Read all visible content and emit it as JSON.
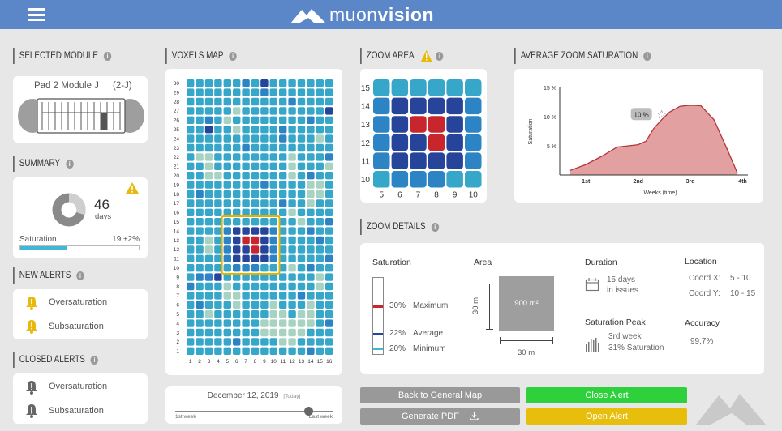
{
  "header": {
    "logo_light": "muon",
    "logo_bold": "vision"
  },
  "sections": {
    "selected_module": "SELECTED MODULE",
    "summary": "SUMMARY",
    "new_alerts": "NEW ALERTS",
    "closed_alerts": "CLOSED ALERTS",
    "voxels_map": "VOXELS MAP",
    "zoom_area": "ZOOM AREA",
    "avg_zoom_saturation": "AVERAGE ZOOM SATURATION",
    "zoom_details": "ZOOM DETAILS"
  },
  "module": {
    "name": "Pad 2 Module J",
    "code": "(2-J)"
  },
  "summary": {
    "days_value": "46",
    "days_unit": "days",
    "saturation_label": "Saturation",
    "saturation_value": "19 ±2%",
    "saturation_fraction": 0.4,
    "donut_fraction": 0.3
  },
  "new_alerts": [
    "Oversaturation",
    "Subsaturation"
  ],
  "closed_alerts": [
    "Oversaturation",
    "Subsaturation"
  ],
  "voxels": {
    "rows": [
      "30",
      "29",
      "28",
      "27",
      "26",
      "25",
      "24",
      "23",
      "22",
      "21",
      "20",
      "19",
      "18",
      "17",
      "16",
      "15",
      "14",
      "13",
      "12",
      "11",
      "10",
      "9",
      "8",
      "7",
      "6",
      "5",
      "4",
      "3",
      "2",
      "1"
    ],
    "cols": [
      "1",
      "2",
      "3",
      "4",
      "5",
      "6",
      "7",
      "8",
      "9",
      "10",
      "11",
      "12",
      "13",
      "14",
      "15",
      "16"
    ],
    "colors": {
      "base": "#36a6c9",
      "light": "#a8d3c3",
      "mid": "#2d84c4",
      "dark": "#25449a",
      "red": "#c8262c",
      "zoom_box": "#e0b300"
    }
  },
  "timeline": {
    "date": "December 12, 2019",
    "tag": "[Today]",
    "start_label": "1st week",
    "end_label": "Last week",
    "position": 0.85
  },
  "zoom": {
    "rows": [
      "15",
      "14",
      "13",
      "12",
      "11",
      "10"
    ],
    "cols": [
      "5",
      "6",
      "7",
      "8",
      "9",
      "10"
    ],
    "grid": [
      [
        "b",
        "b",
        "b",
        "b",
        "b",
        "b"
      ],
      [
        "m",
        "d",
        "d",
        "d",
        "d",
        "m"
      ],
      [
        "m",
        "d",
        "r",
        "r",
        "d",
        "m"
      ],
      [
        "m",
        "d",
        "d",
        "r",
        "d",
        "m"
      ],
      [
        "m",
        "d",
        "d",
        "d",
        "d",
        "m"
      ],
      [
        "b",
        "m",
        "m",
        "m",
        "b",
        "b"
      ]
    ]
  },
  "chart_data": {
    "type": "area",
    "title": "",
    "xlabel": "Weeks (time)",
    "ylabel": "Saturation",
    "x_ticks": [
      "1st",
      "2nd",
      "3rd",
      "4th"
    ],
    "y_ticks": [
      "5 %",
      "10 %",
      "15 %"
    ],
    "ylim": [
      0,
      16
    ],
    "x": [
      0.7,
      1.0,
      1.3,
      1.6,
      1.8,
      2.0,
      2.15,
      2.3,
      2.45,
      2.6,
      2.8,
      3.0,
      3.2,
      3.45,
      3.7,
      3.9
    ],
    "values": [
      0.8,
      1.8,
      3.2,
      4.8,
      5.0,
      5.2,
      5.8,
      8.0,
      9.5,
      10.8,
      11.8,
      12.0,
      11.9,
      9.5,
      4.5,
      0.3
    ],
    "annotation": {
      "label": "10 %",
      "x": 2.45,
      "y": 10.4
    },
    "fill": "#e3a0a1",
    "line": "#b5343a"
  },
  "details": {
    "saturation_label": "Saturation",
    "area_label": "Area",
    "duration_label": "Duration",
    "location_label": "Location",
    "max_value": "30%",
    "max_label": "Maximum",
    "avg_value": "22%",
    "avg_label": "Average",
    "min_value": "20%",
    "min_label": "Minimum",
    "area_value": "900 m²",
    "area_side": "30 m",
    "duration_value": "15 days",
    "duration_sub": "in issues",
    "coord_x_label": "Coord X:",
    "coord_x_value": "5 - 10",
    "coord_y_label": "Coord Y:",
    "coord_y_value": "10 - 15",
    "peak_label": "Saturation Peak",
    "peak_week": "3rd week",
    "peak_sat": "31% Saturation",
    "accuracy_label": "Accuracy",
    "accuracy_value": "99,7%"
  },
  "buttons": {
    "back": "Back to General Map",
    "pdf": "Generate PDF",
    "close_alert": "Close Alert",
    "open_alert": "Open Alert"
  }
}
